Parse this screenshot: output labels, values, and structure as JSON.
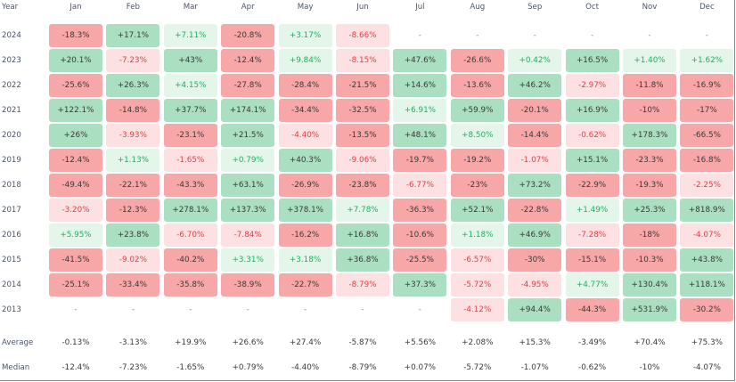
{
  "columns": {
    "year": "Year",
    "months": [
      "Jan",
      "Feb",
      "Mar",
      "Apr",
      "May",
      "Jun",
      "Jul",
      "Aug",
      "Sep",
      "Oct",
      "Nov",
      "Dec"
    ]
  },
  "rows": [
    {
      "year": "2024",
      "values": [
        "-18.3%",
        "+17.1%",
        "+7.11%",
        "-20.8%",
        "+3.17%",
        "-8.66%",
        "-",
        "-",
        "-",
        "-",
        "-",
        "-"
      ]
    },
    {
      "year": "2023",
      "values": [
        "+20.1%",
        "-7.23%",
        "+43%",
        "-12.4%",
        "+9.84%",
        "-8.15%",
        "+47.6%",
        "-26.6%",
        "+0.42%",
        "+16.5%",
        "+1.40%",
        "+1.62%"
      ]
    },
    {
      "year": "2022",
      "values": [
        "-25.6%",
        "+26.3%",
        "+4.15%",
        "-27.8%",
        "-28.4%",
        "-21.5%",
        "+14.6%",
        "-13.6%",
        "+46.2%",
        "-2.97%",
        "-11.8%",
        "-16.9%"
      ]
    },
    {
      "year": "2021",
      "values": [
        "+122.1%",
        "-14.8%",
        "+37.7%",
        "+174.1%",
        "-34.4%",
        "-32.5%",
        "+6.91%",
        "+59.9%",
        "-20.1%",
        "+16.9%",
        "-10%",
        "-17%"
      ]
    },
    {
      "year": "2020",
      "values": [
        "+26%",
        "-3.93%",
        "-23.1%",
        "+21.5%",
        "-4.40%",
        "-13.5%",
        "+48.1%",
        "+8.50%",
        "-14.4%",
        "-0.62%",
        "+178.3%",
        "-66.5%"
      ]
    },
    {
      "year": "2019",
      "values": [
        "-12.4%",
        "+1.13%",
        "-1.65%",
        "+0.79%",
        "+40.3%",
        "-9.06%",
        "-19.7%",
        "-19.2%",
        "-1.07%",
        "+15.1%",
        "-23.3%",
        "-16.8%"
      ]
    },
    {
      "year": "2018",
      "values": [
        "-49.4%",
        "-22.1%",
        "-43.3%",
        "+63.1%",
        "-26.9%",
        "-23.8%",
        "-6.77%",
        "-23%",
        "+73.2%",
        "-22.9%",
        "-19.3%",
        "-2.25%"
      ]
    },
    {
      "year": "2017",
      "values": [
        "-3.20%",
        "-12.3%",
        "+278.1%",
        "+137.3%",
        "+378.1%",
        "+7.78%",
        "-36.3%",
        "+52.1%",
        "-22.8%",
        "+1.49%",
        "+25.3%",
        "+818.9%"
      ]
    },
    {
      "year": "2016",
      "values": [
        "+5.95%",
        "+23.8%",
        "-6.70%",
        "-7.84%",
        "-16.2%",
        "+16.8%",
        "-10.6%",
        "+1.18%",
        "+46.9%",
        "-7.28%",
        "-18%",
        "-4.07%"
      ]
    },
    {
      "year": "2015",
      "values": [
        "-41.5%",
        "-9.02%",
        "-40.2%",
        "+3.31%",
        "+3.18%",
        "+36.8%",
        "-25.5%",
        "-6.57%",
        "-30%",
        "-15.1%",
        "-10.3%",
        "+43.8%"
      ]
    },
    {
      "year": "2014",
      "values": [
        "-25.1%",
        "-33.4%",
        "-35.8%",
        "-38.9%",
        "-22.7%",
        "-8.79%",
        "+37.3%",
        "-5.72%",
        "-4.95%",
        "+4.77%",
        "+130.4%",
        "+118.1%"
      ]
    },
    {
      "year": "2013",
      "values": [
        "-",
        "-",
        "-",
        "-",
        "-",
        "-",
        "-",
        "-4.12%",
        "+94.4%",
        "-44.3%",
        "+531.9%",
        "-30.2%"
      ]
    }
  ],
  "stats": [
    {
      "label": "Average",
      "values": [
        "-0.13%",
        "-3.13%",
        "+19.9%",
        "+26.6%",
        "+27.4%",
        "-5.87%",
        "+5.56%",
        "+2.08%",
        "+15.3%",
        "-3.49%",
        "+70.4%",
        "+75.3%"
      ]
    },
    {
      "label": "Median",
      "values": [
        "-12.4%",
        "-7.23%",
        "-1.65%",
        "+0.79%",
        "-4.40%",
        "-8.79%",
        "+0.07%",
        "-5.72%",
        "-1.07%",
        "-0.62%",
        "-10%",
        "-4.07%"
      ]
    }
  ],
  "colors": {
    "strong_negative_bg": "#f7a7a8",
    "light_negative_bg": "#fde0e1",
    "strong_positive_bg": "#abdfc1",
    "light_positive_bg": "#e4f6e9",
    "negative_text": "#e0414a",
    "positive_text": "#1eb062",
    "strong_text": "#3a3a3a"
  }
}
